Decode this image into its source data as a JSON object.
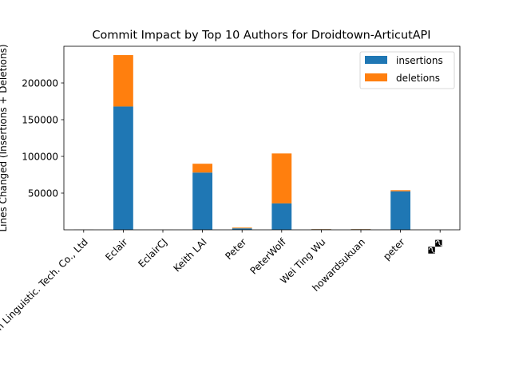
{
  "chart_data": {
    "type": "bar",
    "stacked": true,
    "title": "Commit Impact by Top 10 Authors for Droidtown-ArticutAPI",
    "xlabel": "",
    "ylabel": "Lines Changed (Insertions + Deletions)",
    "ylim": [
      0,
      250000
    ],
    "yticks": [
      50000,
      100000,
      150000,
      200000
    ],
    "ytick_labels": [
      "50000",
      "100000",
      "150000",
      "200000"
    ],
    "grid": false,
    "legend_position": "top-right",
    "categories": [
      "Droidtown Linguistic. Tech. Co., Ltd",
      "Eclair",
      "EclairCJ",
      "Keith LAI",
      "Peter",
      "PeterWolf",
      "Wei Ting Wu",
      "howardsukuan",
      "peter",
      "��"
    ],
    "series": [
      {
        "name": "insertions",
        "color": "#1f77b4",
        "values": [
          200,
          168000,
          100,
          78000,
          2000,
          36000,
          800,
          800,
          52500,
          100
        ]
      },
      {
        "name": "deletions",
        "color": "#ff7f0e",
        "values": [
          100,
          70000,
          50,
          12000,
          1000,
          68000,
          300,
          300,
          1500,
          50
        ]
      }
    ]
  }
}
